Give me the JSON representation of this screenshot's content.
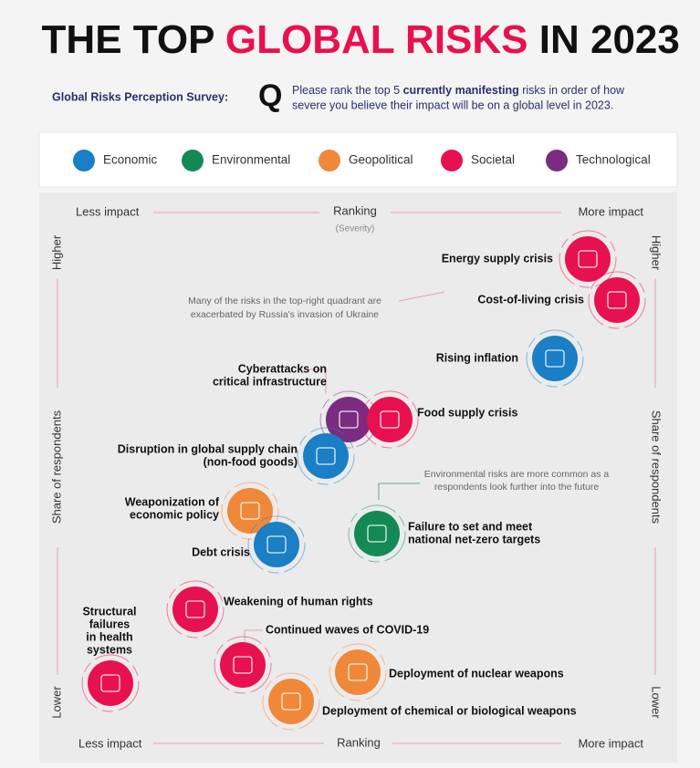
{
  "title": {
    "pre": "THE TOP",
    "highlight": "GLOBAL RISKS",
    "post": "IN 2023"
  },
  "survey": {
    "label": "Global Risks Perception Survey:",
    "q": "Q",
    "line1": [
      "Please rank the top 5 ",
      "currently manifesting",
      " risks in order of how"
    ],
    "line2": "severe you believe their impact will be on a global level in 2023."
  },
  "legend": [
    {
      "name": "Economic",
      "color": "#1a7fc4"
    },
    {
      "name": "Environmental",
      "color": "#138a55"
    },
    {
      "name": "Geopolitical",
      "color": "#f0883a"
    },
    {
      "name": "Societal",
      "color": "#e8114f"
    },
    {
      "name": "Technological",
      "color": "#7b2b80"
    }
  ],
  "axes": {
    "top": {
      "left": "Less impact",
      "center": "Ranking",
      "sub": "(Severity)",
      "right": "More impact"
    },
    "bottom": {
      "left": "Less impact",
      "center": "Ranking",
      "right": "More impact"
    },
    "left": {
      "top": "Higher",
      "center": "Share of respondents",
      "bottom": "Lower"
    },
    "right": {
      "top": "Higher",
      "center": "Share of respondents",
      "bottom": "Lower"
    }
  },
  "annotations": [
    [
      "Many of the risks in the top-right quadrant are",
      "exacerbated by Russia's invasion of Ukraine"
    ],
    [
      "Environmental risks are more common as a",
      "respondents look further into the future"
    ]
  ],
  "risks": [
    {
      "label": [
        "Energy supply crisis"
      ],
      "color": "#e8114f"
    },
    {
      "label": [
        "Cost-of-living crisis"
      ],
      "color": "#e8114f"
    },
    {
      "label": [
        "Rising inflation"
      ],
      "color": "#1a7fc4"
    },
    {
      "label": [
        "Cyberattacks on",
        "critical infrastructure"
      ],
      "color": "#7b2b80"
    },
    {
      "label": [
        "Food supply crisis"
      ],
      "color": "#e8114f"
    },
    {
      "label": [
        "Disruption in global supply chain",
        "(non-food goods)"
      ],
      "color": "#1a7fc4"
    },
    {
      "label": [
        "Weaponization of",
        "economic policy"
      ],
      "color": "#f0883a"
    },
    {
      "label": [
        "Debt crisis"
      ],
      "color": "#1a7fc4"
    },
    {
      "label": [
        "Failure to set and meet",
        "national net-zero targets"
      ],
      "color": "#138a55"
    },
    {
      "label": [
        "Weakening of human rights"
      ],
      "color": "#e8114f"
    },
    {
      "label": [
        "Structural",
        "failures",
        "in health",
        "systems"
      ],
      "color": "#e8114f"
    },
    {
      "label": [
        "Continued waves of COVID-19"
      ],
      "color": "#e8114f"
    },
    {
      "label": [
        "Deployment of nuclear weapons"
      ],
      "color": "#f0883a"
    },
    {
      "label": [
        "Deployment of chemical or biological weapons"
      ],
      "color": "#f0883a"
    }
  ]
}
